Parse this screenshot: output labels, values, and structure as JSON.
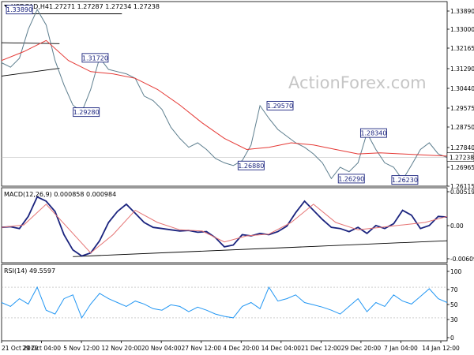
{
  "chart_data": [
    {
      "type": "line",
      "panel": "price",
      "header": {
        "symbol": "USDCAD,H4",
        "ohlc": "1.27271 1.27287 1.27234 1.27238"
      },
      "watermark": "ActionForex.com",
      "ylim": [
        1.2595,
        1.3425
      ],
      "y_ticks": [
        "1.33890",
        "1.33000",
        "1.32165",
        "1.31290",
        "1.30440",
        "1.29575",
        "1.28750",
        "1.27840",
        "1.26965",
        "1.26115"
      ],
      "last_price_label": "1.27238",
      "annotations": [
        {
          "text": "1.33890",
          "x": 0.04,
          "y": 1.3389
        },
        {
          "text": "1.31720",
          "x": 0.21,
          "y": 1.3172
        },
        {
          "text": "1.29280",
          "x": 0.19,
          "y": 1.2928
        },
        {
          "text": "1.26880",
          "x": 0.56,
          "y": 1.2688
        },
        {
          "text": "1.29570",
          "x": 0.625,
          "y": 1.2957
        },
        {
          "text": "1.28340",
          "x": 0.835,
          "y": 1.2834
        },
        {
          "text": "1.26290",
          "x": 0.785,
          "y": 1.2629
        },
        {
          "text": "1.26230",
          "x": 0.905,
          "y": 1.2623
        }
      ],
      "series": [
        {
          "color": "#5d7e8e",
          "x": [
            0,
            0.02,
            0.04,
            0.06,
            0.08,
            0.1,
            0.12,
            0.14,
            0.16,
            0.18,
            0.2,
            0.22,
            0.24,
            0.26,
            0.28,
            0.3,
            0.32,
            0.34,
            0.36,
            0.38,
            0.4,
            0.42,
            0.44,
            0.46,
            0.48,
            0.5,
            0.52,
            0.54,
            0.56,
            0.58,
            0.6,
            0.62,
            0.64,
            0.66,
            0.68,
            0.7,
            0.72,
            0.74,
            0.76,
            0.78,
            0.8,
            0.82,
            0.84,
            0.86,
            0.88,
            0.9,
            0.92,
            0.94,
            0.96,
            0.98,
            1.0
          ],
          "values": [
            1.315,
            1.313,
            1.317,
            1.33,
            1.3389,
            1.332,
            1.316,
            1.305,
            1.296,
            1.2928,
            1.303,
            1.3172,
            1.312,
            1.311,
            1.31,
            1.308,
            1.3,
            1.298,
            1.294,
            1.286,
            1.281,
            1.277,
            1.279,
            1.276,
            1.272,
            1.27,
            1.2688,
            1.271,
            1.278,
            1.2957,
            1.29,
            1.285,
            1.282,
            1.279,
            1.277,
            1.274,
            1.27,
            1.2629,
            1.268,
            1.266,
            1.27,
            1.2834,
            1.276,
            1.27,
            1.268,
            1.2623,
            1.269,
            1.276,
            1.279,
            1.274,
            1.2724
          ]
        },
        {
          "color": "#e53935",
          "x": [
            0,
            0.05,
            0.1,
            0.15,
            0.2,
            0.25,
            0.3,
            0.35,
            0.4,
            0.45,
            0.5,
            0.55,
            0.6,
            0.65,
            0.7,
            0.75,
            0.8,
            0.85,
            0.9,
            0.95,
            1.0
          ],
          "values": [
            1.316,
            1.32,
            1.325,
            1.316,
            1.311,
            1.31,
            1.308,
            1.303,
            1.296,
            1.288,
            1.281,
            1.276,
            1.277,
            1.279,
            1.278,
            1.276,
            1.274,
            1.2745,
            1.274,
            1.2735,
            1.273
          ]
        }
      ],
      "trendlines": [
        {
          "color": "#000000",
          "x": [
            0.0,
            0.13
          ],
          "values": [
            1.324,
            1.3236
          ]
        },
        {
          "color": "#000000",
          "x": [
            0.03,
            0.27
          ],
          "values": [
            1.337,
            1.337
          ]
        },
        {
          "color": "#000000",
          "x": [
            0.0,
            0.13
          ],
          "values": [
            1.309,
            1.3125
          ]
        }
      ]
    },
    {
      "type": "line",
      "panel": "macd",
      "header": "MACD(12,26,9) 0.000858 0.000984",
      "ylim": [
        -0.0066,
        0.0057
      ],
      "y_ticks": [
        "0.005195",
        "0.00",
        "-0.006093"
      ],
      "series": [
        {
          "color": "#1a237e",
          "x": [
            0,
            0.02,
            0.04,
            0.06,
            0.08,
            0.1,
            0.12,
            0.14,
            0.16,
            0.18,
            0.2,
            0.22,
            0.24,
            0.26,
            0.28,
            0.3,
            0.32,
            0.34,
            0.36,
            0.38,
            0.4,
            0.42,
            0.44,
            0.46,
            0.48,
            0.5,
            0.52,
            0.54,
            0.56,
            0.58,
            0.6,
            0.62,
            0.64,
            0.66,
            0.68,
            0.7,
            0.72,
            0.74,
            0.76,
            0.78,
            0.8,
            0.82,
            0.84,
            0.86,
            0.88,
            0.9,
            0.92,
            0.94,
            0.96,
            0.98,
            1.0
          ],
          "values": [
            -0.0008,
            -0.0007,
            -0.001,
            0.001,
            0.0042,
            0.0035,
            0.0018,
            -0.002,
            -0.0045,
            -0.0055,
            -0.005,
            -0.003,
            0.0,
            0.0018,
            0.003,
            0.0015,
            0.0,
            -0.0008,
            -0.001,
            -0.0012,
            -0.0014,
            -0.0013,
            -0.0016,
            -0.0015,
            -0.0025,
            -0.004,
            -0.0037,
            -0.002,
            -0.0022,
            -0.0018,
            -0.002,
            -0.0015,
            -0.0006,
            0.0016,
            0.0035,
            0.002,
            0.0005,
            -0.0008,
            -0.001,
            -0.0015,
            -0.0008,
            -0.0018,
            -0.0005,
            -0.001,
            -0.0002,
            0.002,
            0.0012,
            -0.001,
            -0.0005,
            0.001,
            0.0009
          ]
        },
        {
          "color": "#e57373",
          "x": [
            0,
            0.05,
            0.1,
            0.15,
            0.2,
            0.25,
            0.3,
            0.35,
            0.4,
            0.45,
            0.5,
            0.55,
            0.6,
            0.65,
            0.7,
            0.75,
            0.8,
            0.85,
            0.9,
            0.95,
            1.0
          ],
          "values": [
            -0.0008,
            -0.0004,
            0.003,
            -0.001,
            -0.005,
            -0.002,
            0.002,
            0.0,
            -0.0012,
            -0.0014,
            -0.0032,
            -0.0022,
            -0.0019,
            0.0,
            0.003,
            0.0,
            -0.0012,
            -0.0008,
            -0.0004,
            0.0,
            0.001
          ]
        }
      ],
      "trendlines": [
        {
          "color": "#000000",
          "x": [
            0.16,
            1.0
          ],
          "values": [
            -0.0056,
            -0.003
          ]
        }
      ]
    },
    {
      "type": "line",
      "panel": "rsi",
      "header": "RSI(14) 49.5597",
      "ylim": [
        0,
        100
      ],
      "y_ticks": [
        "100",
        "70",
        "50",
        "30",
        "0"
      ],
      "reference_levels": [
        70,
        30
      ],
      "x_ticks": [
        "21 Oct 2020",
        "29 Oct 04:00",
        "5 Nov 12:00",
        "12 Nov 20:00",
        "20 Nov 04:00",
        "27 Nov 12:00",
        "4 Dec 20:00",
        "14 Dec 04:00",
        "21 Dec 12:00",
        "29 Dec 20:00",
        "7 Jan 04:00",
        "14 Jan 12:00"
      ],
      "series": [
        {
          "color": "#2196f3",
          "x": [
            0,
            0.02,
            0.04,
            0.06,
            0.08,
            0.1,
            0.12,
            0.14,
            0.16,
            0.18,
            0.2,
            0.22,
            0.24,
            0.26,
            0.28,
            0.3,
            0.32,
            0.34,
            0.36,
            0.38,
            0.4,
            0.42,
            0.44,
            0.46,
            0.48,
            0.5,
            0.52,
            0.54,
            0.56,
            0.58,
            0.6,
            0.62,
            0.64,
            0.66,
            0.68,
            0.7,
            0.72,
            0.74,
            0.76,
            0.78,
            0.8,
            0.82,
            0.84,
            0.86,
            0.88,
            0.9,
            0.92,
            0.94,
            0.96,
            0.98,
            1.0
          ],
          "values": [
            50,
            45,
            55,
            48,
            70,
            40,
            35,
            55,
            60,
            30,
            48,
            62,
            55,
            50,
            45,
            52,
            48,
            42,
            40,
            47,
            45,
            38,
            44,
            40,
            35,
            32,
            30,
            45,
            50,
            42,
            70,
            52,
            55,
            60,
            50,
            47,
            44,
            40,
            35,
            45,
            55,
            38,
            50,
            45,
            60,
            52,
            48,
            58,
            68,
            55,
            50
          ]
        }
      ]
    }
  ]
}
